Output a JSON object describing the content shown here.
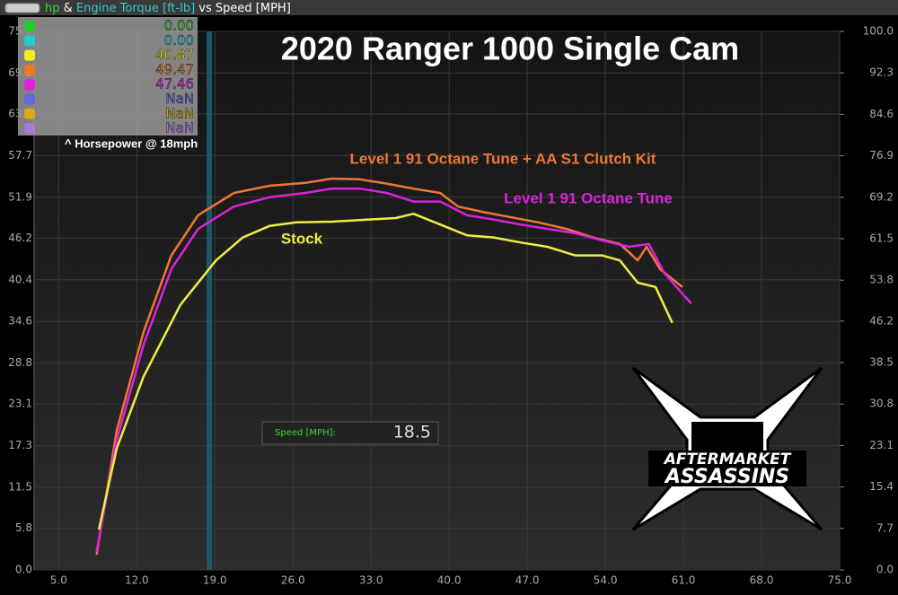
{
  "chart_data": {
    "type": "line",
    "window_title": [
      {
        "text": "hp",
        "color": "#33dd33"
      },
      {
        "text": " & ",
        "color": "#ffffff"
      },
      {
        "text": "Engine Torque [ft-lb]",
        "color": "#33cccc"
      },
      {
        "text": " vs Speed [MPH]",
        "color": "#ffffff"
      }
    ],
    "title": "2020 Ranger 1000 Single Cam",
    "readouts": [
      {
        "text": "0.00",
        "color": "#22cc22"
      },
      {
        "text": "0.00",
        "color": "#22cccc"
      },
      {
        "text": "40.87",
        "color": "#eeee22"
      },
      {
        "text": "49.47",
        "color": "#ee7722"
      },
      {
        "text": "47.46",
        "color": "#dd22dd"
      },
      {
        "text": "NaN",
        "color": "#6666dd"
      },
      {
        "text": "NaN",
        "color": "#ddaa11"
      },
      {
        "text": "NaN",
        "color": "#aa77dd"
      }
    ],
    "readout_note": "^ Horsepower @ 18mph",
    "cursor": {
      "label": "Speed [MPH]:",
      "value": 18.5
    },
    "logo": {
      "line1": "AFTERMARKET",
      "line2": "ASSASSINS"
    },
    "xlim": [
      2.8,
      75.0
    ],
    "xticks": [
      {
        "value": 5,
        "label": "5.0"
      },
      {
        "value": 12,
        "label": "12.0"
      },
      {
        "value": 19,
        "label": "19.0"
      },
      {
        "value": 26,
        "label": "26.0"
      },
      {
        "value": 33,
        "label": "33.0"
      },
      {
        "value": 40,
        "label": "40.0"
      },
      {
        "value": 47,
        "label": "47.0"
      },
      {
        "value": 54,
        "label": "54.0"
      },
      {
        "value": 61,
        "label": "61.0"
      },
      {
        "value": 68,
        "label": "68.0"
      },
      {
        "value": 75,
        "label": "75.0"
      }
    ],
    "ylim": [
      0,
      75.0
    ],
    "yticks": [
      {
        "value": 0,
        "label": "0.0"
      },
      5.8,
      11.5,
      17.3,
      23.1,
      28.8,
      34.6,
      40.4,
      46.2,
      51.9,
      57.7,
      63.5,
      69.2,
      {
        "value": 75,
        "label": "75.0"
      }
    ],
    "y2lim": [
      0,
      100.0
    ],
    "y2ticks": [
      {
        "value": 0,
        "label": "0.0"
      },
      7.7,
      15.4,
      23.1,
      30.8,
      38.5,
      46.2,
      53.8,
      61.5,
      69.2,
      76.9,
      84.6,
      92.3,
      {
        "value": 100,
        "label": "100.0"
      }
    ],
    "grid": true,
    "series": [
      {
        "name": "Level 1 91 Octane Tune + AA S1 Clutch Kit",
        "color": "#ee7733",
        "x": [
          8.4,
          10.2,
          12.6,
          15.1,
          17.5,
          20.7,
          23.9,
          27.1,
          29.5,
          32.0,
          34.4,
          36.8,
          39.2,
          40.8,
          43.2,
          45.6,
          48.0,
          50.5,
          52.9,
          55.3,
          56.9,
          57.7,
          58.9,
          60.9
        ],
        "values": [
          2.1,
          19.4,
          33.1,
          43.8,
          49.4,
          52.5,
          53.5,
          53.9,
          54.5,
          54.4,
          53.8,
          53.1,
          52.5,
          50.6,
          49.8,
          49.1,
          48.4,
          47.5,
          46.3,
          45.4,
          43.1,
          45.0,
          41.9,
          39.4
        ]
      },
      {
        "name": "Level 1 91 Octane Tune",
        "color": "#dd22dd",
        "x": [
          8.4,
          10.2,
          12.6,
          15.1,
          17.5,
          20.7,
          23.9,
          27.1,
          29.5,
          32.0,
          34.4,
          36.8,
          39.2,
          41.6,
          44.0,
          46.4,
          48.8,
          51.3,
          53.7,
          56.1,
          57.9,
          59.3,
          61.7
        ],
        "values": [
          2.5,
          18.1,
          31.3,
          41.9,
          47.5,
          50.6,
          51.9,
          52.5,
          53.1,
          53.1,
          52.5,
          51.3,
          51.3,
          49.4,
          48.8,
          48.1,
          47.5,
          46.9,
          45.9,
          45.0,
          45.4,
          41.3,
          37.1
        ]
      },
      {
        "name": "Stock",
        "color": "#eeee44",
        "x": [
          8.6,
          10.2,
          12.6,
          15.9,
          19.1,
          21.5,
          23.9,
          26.3,
          29.5,
          32.8,
          35.2,
          36.8,
          39.2,
          41.6,
          44.0,
          46.4,
          48.8,
          51.3,
          53.7,
          55.3,
          56.9,
          58.5,
          60.0
        ],
        "values": [
          5.6,
          16.9,
          26.9,
          36.9,
          43.1,
          46.3,
          47.9,
          48.4,
          48.5,
          48.8,
          49.0,
          49.6,
          48.1,
          46.6,
          46.3,
          45.6,
          45.0,
          43.8,
          43.8,
          43.1,
          40.0,
          39.4,
          34.4
        ]
      }
    ]
  }
}
